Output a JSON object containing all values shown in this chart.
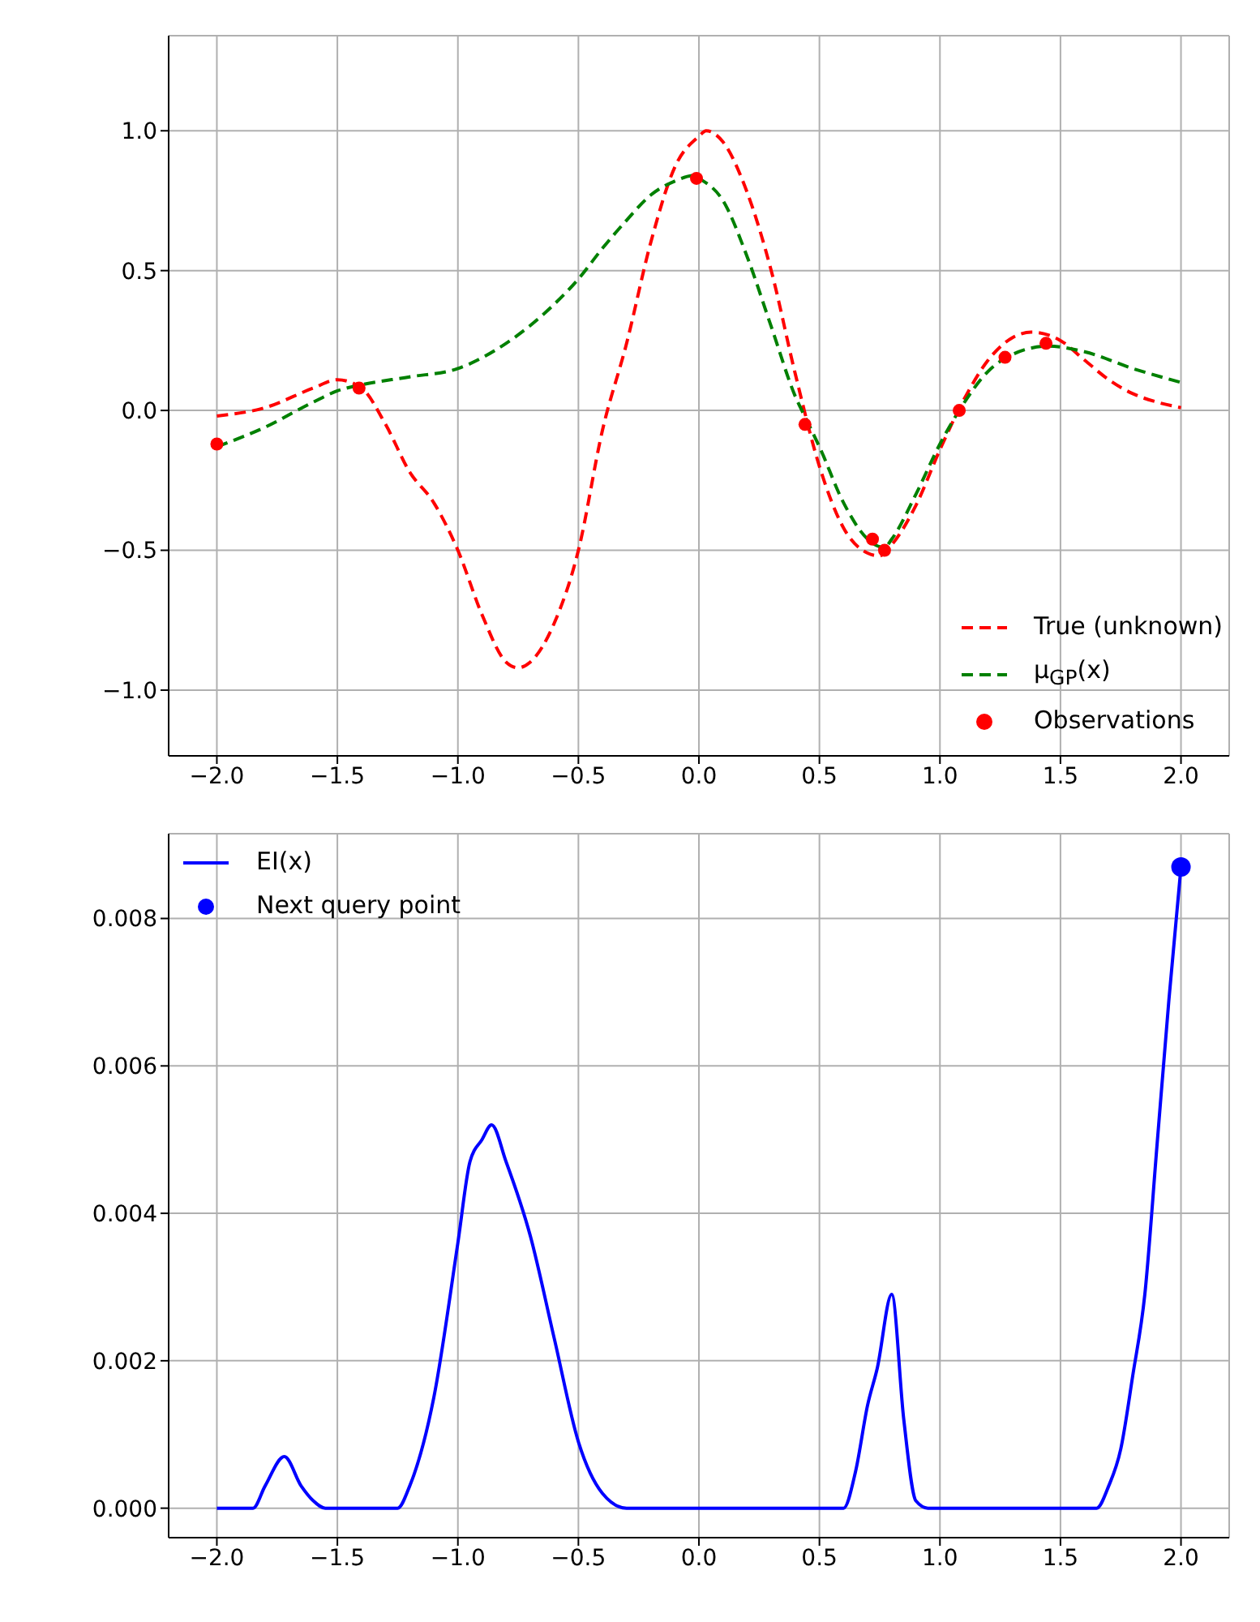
{
  "chart_data": [
    {
      "type": "line",
      "xlim": [
        -2.2,
        2.2
      ],
      "ylim": [
        -1.235,
        1.34
      ],
      "xticks": [
        {
          "value": -2,
          "label": "−2.0"
        },
        {
          "value": -1.5,
          "label": "−1.5"
        },
        {
          "value": -1,
          "label": "−1.0"
        },
        {
          "value": -0.5,
          "label": "−0.5"
        },
        {
          "value": 0,
          "label": "0.0"
        },
        {
          "value": 0.5,
          "label": "0.5"
        },
        {
          "value": 1,
          "label": "1.0"
        },
        {
          "value": 1.5,
          "label": "1.5"
        },
        {
          "value": 2,
          "label": "2.0"
        }
      ],
      "yticks": [
        {
          "value": -1,
          "label": "−1.0"
        },
        {
          "value": -0.5,
          "label": "−0.5"
        },
        {
          "value": 0,
          "label": "0.0"
        },
        {
          "value": 0.5,
          "label": "0.5"
        },
        {
          "value": 1,
          "label": "1.0"
        }
      ],
      "grid": true,
      "legend": "bottom right",
      "series": [
        {
          "name": "True (unknown)",
          "line_style": "dashed",
          "color": "#ff0000",
          "x": [
            -2.0,
            -1.8,
            -1.6,
            -1.5,
            -1.4,
            -1.3,
            -1.2,
            -1.1,
            -1.0,
            -0.9,
            -0.8,
            -0.75,
            -0.7,
            -0.6,
            -0.5,
            -0.4,
            -0.3,
            -0.2,
            -0.1,
            0.0,
            0.03,
            0.1,
            0.2,
            0.3,
            0.4,
            0.5,
            0.6,
            0.7,
            0.75,
            0.8,
            0.9,
            1.0,
            1.1,
            1.2,
            1.3,
            1.38,
            1.5,
            1.6,
            1.7,
            1.8,
            1.9,
            2.0
          ],
          "values": [
            -0.02,
            0.01,
            0.08,
            0.11,
            0.08,
            -0.05,
            -0.22,
            -0.33,
            -0.5,
            -0.73,
            -0.9,
            -0.92,
            -0.9,
            -0.76,
            -0.5,
            -0.07,
            0.24,
            0.6,
            0.87,
            0.98,
            1.0,
            0.96,
            0.78,
            0.5,
            0.13,
            -0.2,
            -0.42,
            -0.51,
            -0.52,
            -0.48,
            -0.34,
            -0.14,
            0.04,
            0.18,
            0.26,
            0.28,
            0.25,
            0.18,
            0.11,
            0.06,
            0.03,
            0.01
          ]
        },
        {
          "name": "μ$_{GP}$(x)",
          "line_style": "dashed",
          "color": "#008000",
          "x": [
            -2.0,
            -1.8,
            -1.6,
            -1.5,
            -1.41,
            -1.2,
            -1.0,
            -0.8,
            -0.6,
            -0.5,
            -0.4,
            -0.3,
            -0.2,
            -0.1,
            -0.02,
            0.0,
            0.1,
            0.2,
            0.3,
            0.4,
            0.45,
            0.5,
            0.6,
            0.7,
            0.77,
            0.8,
            0.9,
            1.0,
            1.08,
            1.2,
            1.3,
            1.45,
            1.6,
            1.8,
            2.0
          ],
          "values": [
            -0.13,
            -0.06,
            0.03,
            0.07,
            0.09,
            0.12,
            0.15,
            0.24,
            0.38,
            0.47,
            0.58,
            0.68,
            0.77,
            0.82,
            0.84,
            0.83,
            0.75,
            0.55,
            0.3,
            0.05,
            -0.04,
            -0.13,
            -0.33,
            -0.46,
            -0.49,
            -0.46,
            -0.3,
            -0.12,
            0.0,
            0.14,
            0.2,
            0.23,
            0.21,
            0.15,
            0.1
          ]
        },
        {
          "name": "Observations",
          "type": "scatter",
          "marker": "circle",
          "color": "#ff0000",
          "x": [
            -2.0,
            -1.41,
            -0.01,
            0.44,
            0.72,
            0.77,
            1.08,
            1.27,
            1.44
          ],
          "values": [
            -0.12,
            0.08,
            0.83,
            -0.05,
            -0.46,
            -0.5,
            0.0,
            0.19,
            0.24
          ]
        }
      ]
    },
    {
      "type": "line",
      "xlim": [
        -2.2,
        2.2
      ],
      "ylim": [
        -0.0004,
        0.00915
      ],
      "xticks": [
        {
          "value": -2,
          "label": "−2.0"
        },
        {
          "value": -1.5,
          "label": "−1.5"
        },
        {
          "value": -1,
          "label": "−1.0"
        },
        {
          "value": -0.5,
          "label": "−0.5"
        },
        {
          "value": 0,
          "label": "0.0"
        },
        {
          "value": 0.5,
          "label": "0.5"
        },
        {
          "value": 1,
          "label": "1.0"
        },
        {
          "value": 1.5,
          "label": "1.5"
        },
        {
          "value": 2,
          "label": "2.0"
        }
      ],
      "yticks": [
        {
          "value": 0,
          "label": "0.000"
        },
        {
          "value": 0.002,
          "label": "0.002"
        },
        {
          "value": 0.004,
          "label": "0.004"
        },
        {
          "value": 0.006,
          "label": "0.006"
        },
        {
          "value": 0.008,
          "label": "0.008"
        }
      ],
      "grid": true,
      "legend": "top left",
      "series": [
        {
          "name": "EI(x)",
          "line_style": "solid",
          "color": "#0000ff",
          "x": [
            -2.0,
            -1.85,
            -1.8,
            -1.72,
            -1.65,
            -1.6,
            -1.55,
            -1.25,
            -1.2,
            -1.1,
            -1.0,
            -0.95,
            -0.9,
            -0.86,
            -0.8,
            -0.7,
            -0.6,
            -0.5,
            -0.4,
            -0.3,
            0.6,
            0.65,
            0.7,
            0.74,
            0.8,
            0.85,
            0.9,
            0.95,
            1.65,
            1.7,
            1.75,
            1.8,
            1.85,
            1.9,
            1.95,
            2.0
          ],
          "values": [
            0,
            0,
            0.0003,
            0.0007,
            0.0003,
            0.0001,
            0,
            0,
            0.0003,
            0.0015,
            0.0036,
            0.0047,
            0.005,
            0.0052,
            0.0047,
            0.0037,
            0.0023,
            0.0009,
            0.0002,
            0,
            0,
            0.0005,
            0.0014,
            0.0019,
            0.0029,
            0.0012,
            0.0001,
            0,
            0,
            0.0003,
            0.0008,
            0.0018,
            0.0029,
            0.0049,
            0.0069,
            0.0087
          ]
        },
        {
          "name": "Next query point",
          "type": "scatter",
          "marker": "circle",
          "color": "#0000ff",
          "x": [
            2.0
          ],
          "values": [
            0.0087
          ]
        }
      ]
    }
  ]
}
